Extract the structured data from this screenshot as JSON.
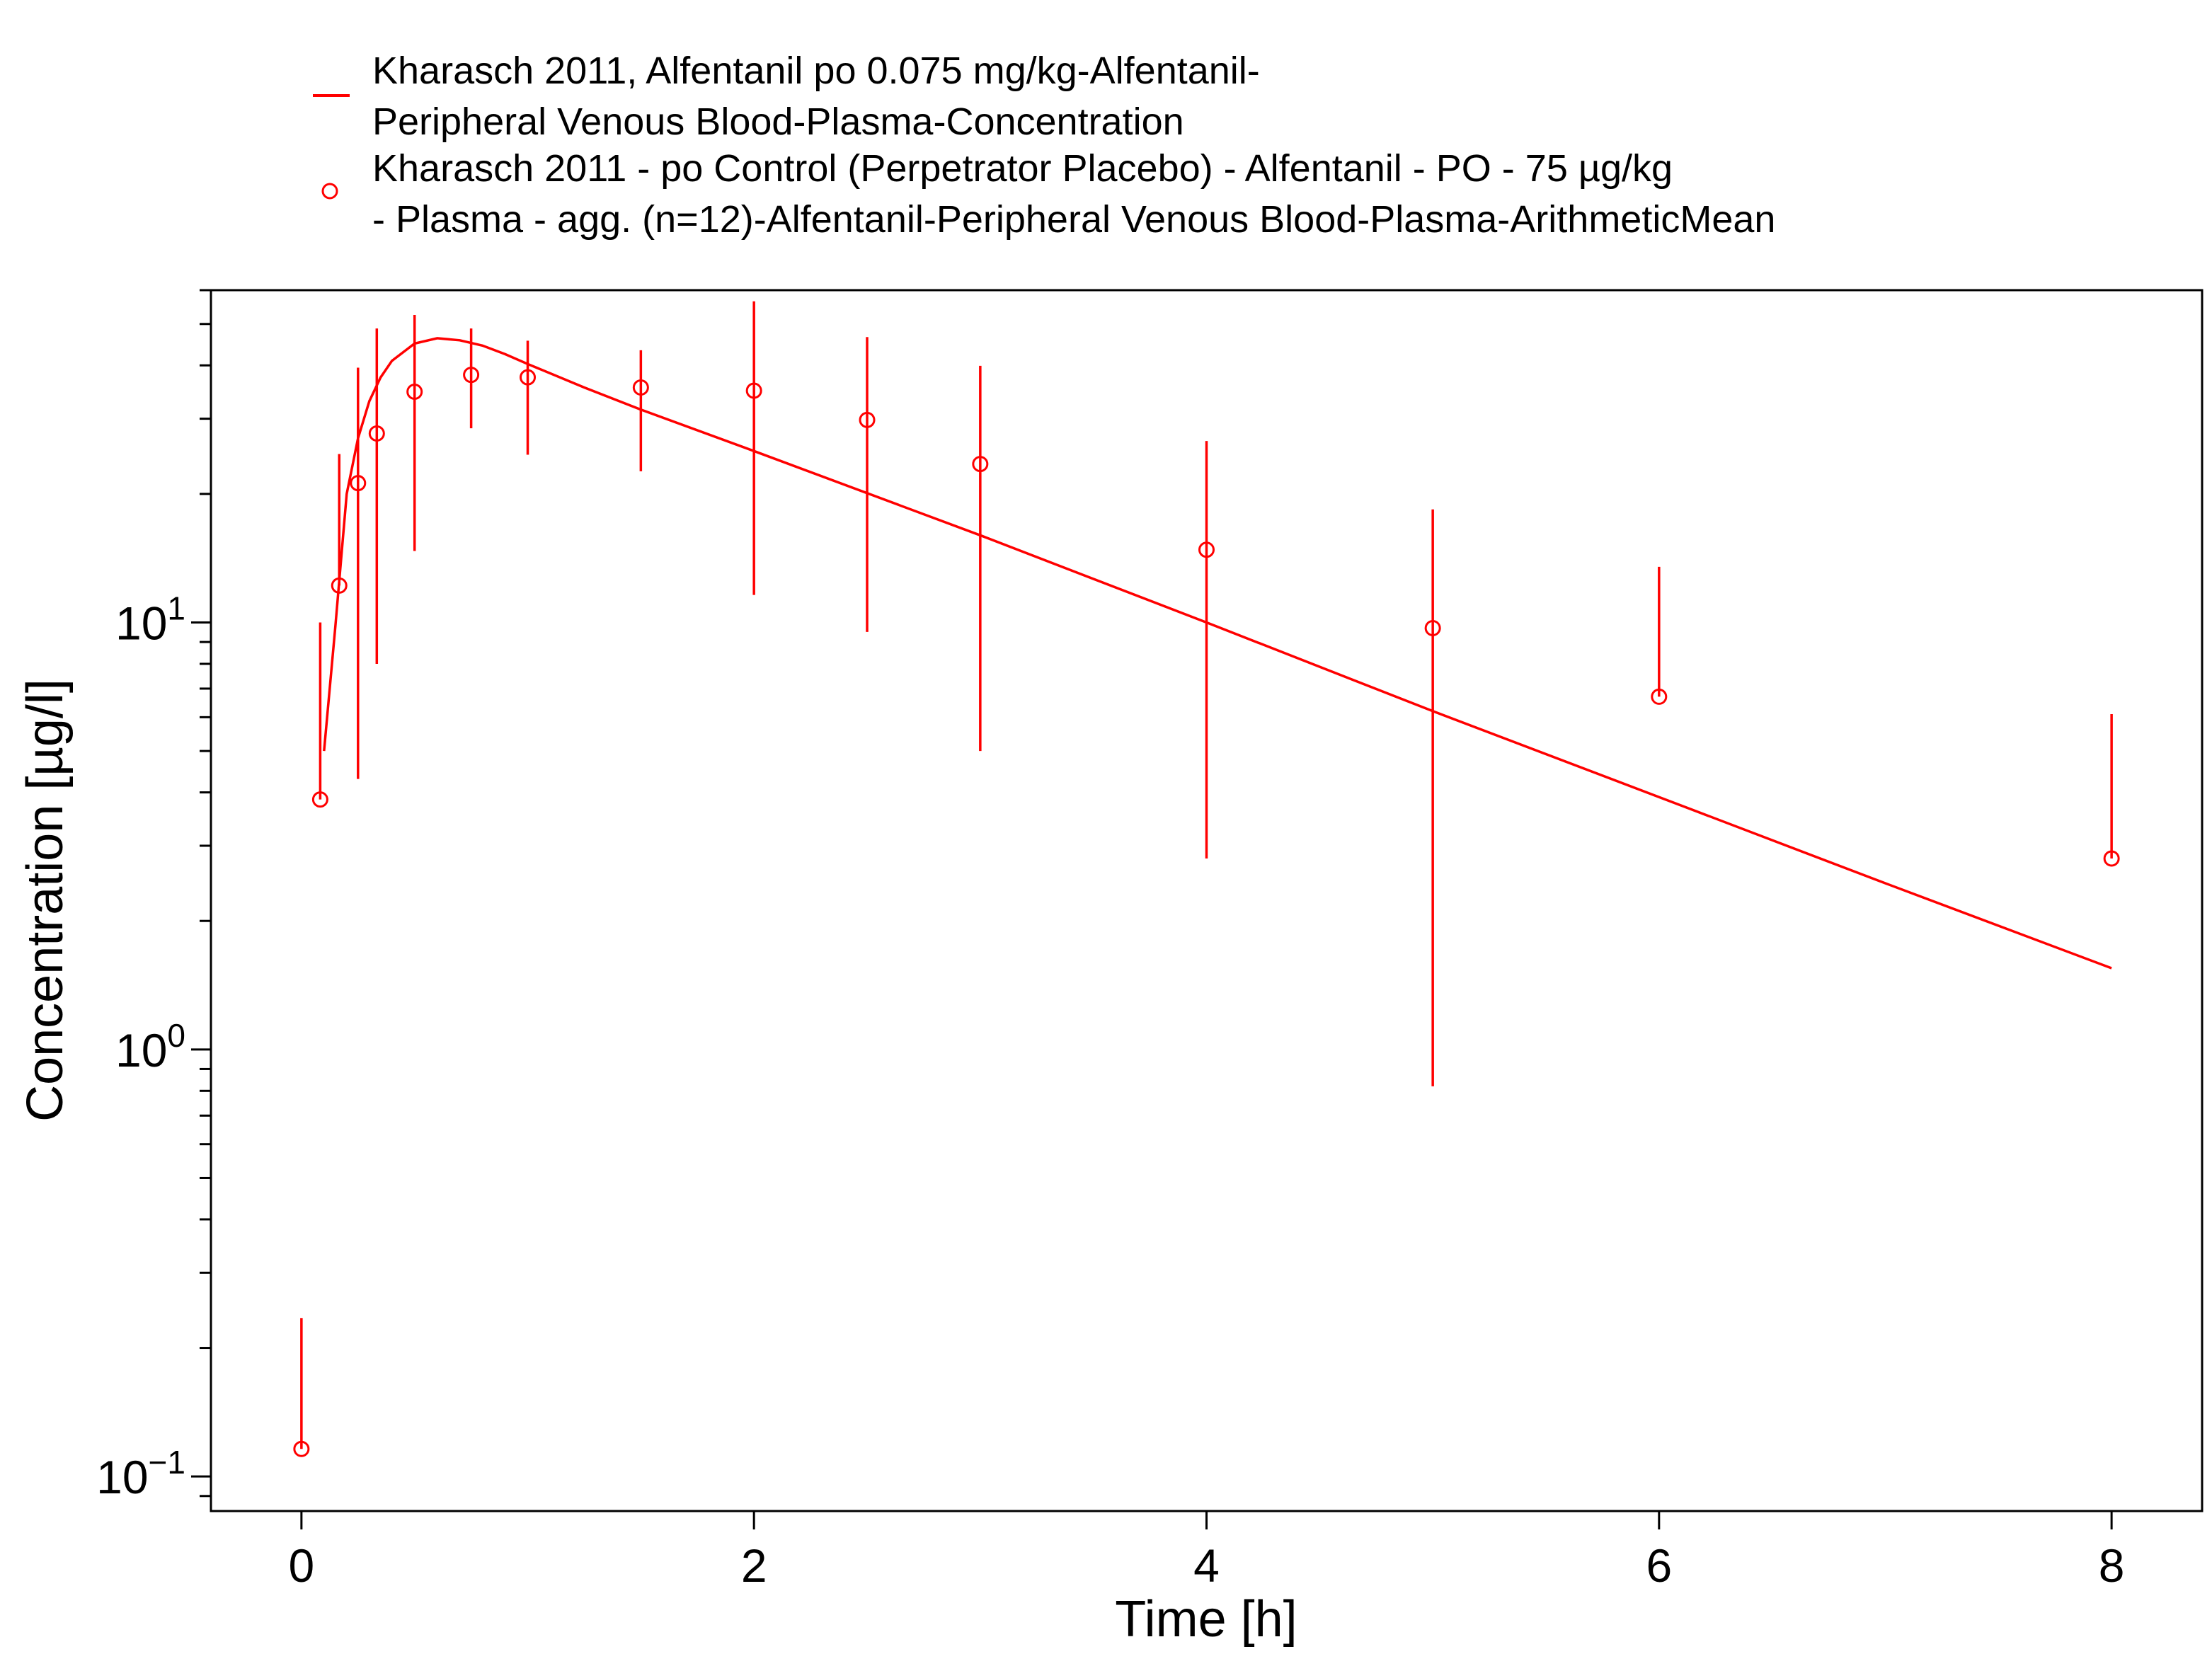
{
  "chart_data": {
    "type": "line",
    "title": "",
    "xlabel": "Time [h]",
    "ylabel": "Concentration [µg/l]",
    "xlim": [
      -0.4,
      8.4
    ],
    "ylim": [
      0.083,
      60
    ],
    "yscale": "log",
    "x_ticks": [
      "0",
      "2",
      "4",
      "6",
      "8"
    ],
    "y_ticks": [
      {
        "base": "10",
        "exp": "−1",
        "value": 0.1
      },
      {
        "base": "10",
        "exp": "0",
        "value": 1
      },
      {
        "base": "10",
        "exp": "1",
        "value": 10
      }
    ],
    "grid": false,
    "legend_position": "top",
    "color": "#ff0000",
    "series": [
      {
        "name_lines": [
          "Kharasch 2011, Alfentanil po 0.075 mg/kg-Alfentanil-",
          "Peripheral Venous Blood-Plasma-Concentration"
        ],
        "kind": "line",
        "x": [
          0.1,
          0.15,
          0.2,
          0.25,
          0.3,
          0.35,
          0.4,
          0.5,
          0.6,
          0.7,
          0.8,
          0.9,
          1.0,
          1.25,
          1.5,
          2.0,
          3.0,
          4.0,
          5.0,
          6.0,
          7.0,
          8.0
        ],
        "y": [
          5.0,
          9.8,
          20.0,
          27.0,
          33.0,
          37.5,
          41.0,
          45.0,
          46.3,
          45.8,
          44.5,
          42.5,
          40.3,
          35.5,
          31.5,
          25.2,
          16.0,
          10.0,
          6.2,
          3.9,
          2.45,
          1.55
        ]
      },
      {
        "name_lines": [
          "Kharasch 2011 - po Control (Perpetrator Placebo) - Alfentanil - PO - 75 µg/kg",
          "- Plasma - agg. (n=12)-Alfentanil-Peripheral Venous Blood-Plasma-ArithmeticMean"
        ],
        "kind": "scatter",
        "x": [
          0.0,
          0.083,
          0.167,
          0.25,
          0.333,
          0.5,
          0.75,
          1.0,
          1.5,
          2.0,
          2.5,
          3.0,
          4.0,
          5.0,
          6.0,
          8.0
        ],
        "y": [
          0.116,
          3.85,
          12.2,
          21.2,
          27.7,
          34.7,
          38.0,
          37.5,
          35.5,
          34.9,
          29.8,
          23.5,
          14.8,
          9.7,
          6.7,
          2.8
        ],
        "y_lower": [
          null,
          3.85,
          null,
          4.3,
          8.0,
          14.7,
          28.5,
          24.7,
          22.6,
          11.6,
          9.5,
          5.0,
          2.8,
          0.82,
          6.7,
          2.8
        ],
        "y_upper": [
          0.235,
          10.0,
          24.8,
          39.5,
          48.8,
          52.5,
          48.8,
          45.7,
          43.4,
          56.5,
          46.6,
          39.9,
          26.6,
          18.4,
          13.5,
          6.1
        ]
      }
    ]
  }
}
